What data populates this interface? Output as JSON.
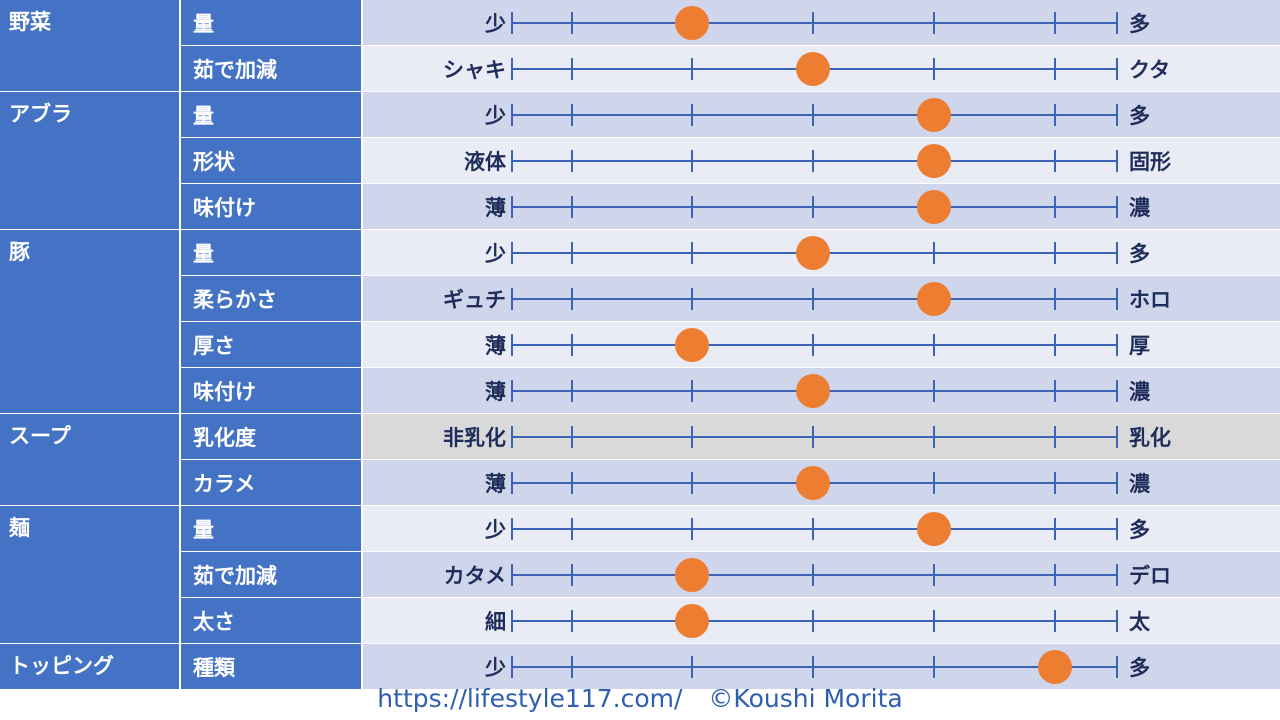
{
  "colors": {
    "category_bg": "#4472c4",
    "row_dark": "#cfd5ea",
    "row_light": "#e9ebf5",
    "row_disabled": "#d9d9d9",
    "line": "#3b64b6",
    "dot": "#ed7d31",
    "label_text": "#1f2d5a"
  },
  "chart_data": {
    "type": "scatter",
    "scale_positions": 6,
    "rows": [
      {
        "category": "野菜",
        "attribute": "量",
        "left": "少",
        "right": "多",
        "value": 2
      },
      {
        "category": "",
        "attribute": "茹で加減",
        "left": "シャキ",
        "right": "クタ",
        "value": 3
      },
      {
        "category": "アブラ",
        "attribute": "量",
        "left": "少",
        "right": "多",
        "value": 4
      },
      {
        "category": "",
        "attribute": "形状",
        "left": "液体",
        "right": "固形",
        "value": 4
      },
      {
        "category": "",
        "attribute": "味付け",
        "left": "薄",
        "right": "濃",
        "value": 4
      },
      {
        "category": "豚",
        "attribute": "量",
        "left": "少",
        "right": "多",
        "value": 3
      },
      {
        "category": "",
        "attribute": "柔らかさ",
        "left": "ギュチ",
        "right": "ホロ",
        "value": 4
      },
      {
        "category": "",
        "attribute": "厚さ",
        "left": "薄",
        "right": "厚",
        "value": 2
      },
      {
        "category": "",
        "attribute": "味付け",
        "left": "薄",
        "right": "濃",
        "value": 3
      },
      {
        "category": "スープ",
        "attribute": "乳化度",
        "left": "非乳化",
        "right": "乳化",
        "value": null
      },
      {
        "category": "",
        "attribute": "カラメ",
        "left": "薄",
        "right": "濃",
        "value": 3
      },
      {
        "category": "麺",
        "attribute": "量",
        "left": "少",
        "right": "多",
        "value": 4
      },
      {
        "category": "",
        "attribute": "茹で加減",
        "left": "カタメ",
        "right": "デロ",
        "value": 2
      },
      {
        "category": "",
        "attribute": "太さ",
        "left": "細",
        "right": "太",
        "value": 2
      },
      {
        "category": "トッピング",
        "attribute": "種類",
        "left": "少",
        "right": "多",
        "value": 5
      }
    ]
  },
  "footer": {
    "url": "https://lifestyle117.com/",
    "copyright": "©Koushi Morita"
  }
}
